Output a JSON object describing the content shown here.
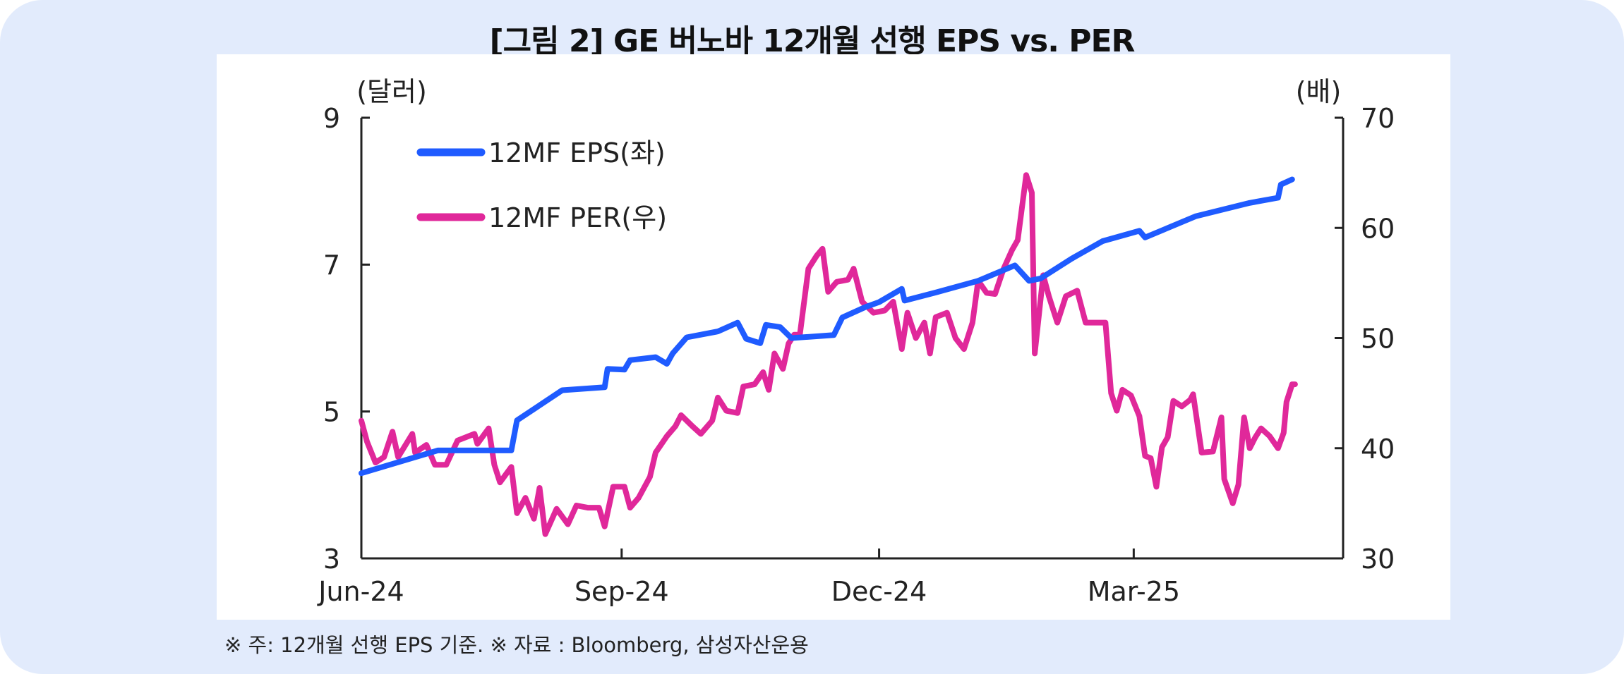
{
  "title": "[그림 2] GE 버노바 12개월 선행 EPS vs. PER",
  "footnote": "※ 주: 12개월 선행 EPS 기준. ※ 자료 : Bloomberg, 삼성자산운용",
  "chart_data": {
    "type": "line",
    "title": "[그림 2] GE 버노바 12개월 선행 EPS vs. PER",
    "x_unit": "days since 2024-06-01",
    "xlim": [
      0,
      347
    ],
    "x_ticks": [
      {
        "day": 0,
        "label": "Jun-24"
      },
      {
        "day": 92,
        "label": "Sep-24"
      },
      {
        "day": 183,
        "label": "Dec-24"
      },
      {
        "day": 273,
        "label": "Mar-25"
      }
    ],
    "y_left": {
      "label": "(달러)",
      "lim": [
        3,
        9
      ],
      "ticks": [
        "3",
        "5",
        "7",
        "9"
      ]
    },
    "y_right": {
      "label": "(배)",
      "lim": [
        30,
        70
      ],
      "ticks": [
        "30",
        "40",
        "50",
        "60",
        "70"
      ]
    },
    "legend_position": "top-left",
    "series": [
      {
        "name": "12MF EPS(좌)",
        "axis": "left",
        "color": "#1f5bff",
        "points": [
          [
            0,
            4.16
          ],
          [
            27,
            4.47
          ],
          [
            53,
            4.47
          ],
          [
            55,
            4.88
          ],
          [
            71,
            5.29
          ],
          [
            86,
            5.33
          ],
          [
            87,
            5.58
          ],
          [
            93,
            5.57
          ],
          [
            95,
            5.7
          ],
          [
            104,
            5.74
          ],
          [
            108,
            5.65
          ],
          [
            110,
            5.79
          ],
          [
            115,
            6.01
          ],
          [
            126,
            6.09
          ],
          [
            133,
            6.21
          ],
          [
            136,
            5.99
          ],
          [
            141,
            5.93
          ],
          [
            143,
            6.18
          ],
          [
            148,
            6.15
          ],
          [
            152,
            6.0
          ],
          [
            167,
            6.04
          ],
          [
            170,
            6.28
          ],
          [
            178,
            6.42
          ],
          [
            183,
            6.49
          ],
          [
            191,
            6.67
          ],
          [
            192,
            6.51
          ],
          [
            203,
            6.62
          ],
          [
            218,
            6.78
          ],
          [
            231,
            6.99
          ],
          [
            236,
            6.78
          ],
          [
            240,
            6.81
          ],
          [
            251,
            7.08
          ],
          [
            262,
            7.32
          ],
          [
            275,
            7.46
          ],
          [
            277,
            7.37
          ],
          [
            295,
            7.66
          ],
          [
            314,
            7.84
          ],
          [
            324,
            7.91
          ],
          [
            325,
            8.09
          ],
          [
            329,
            8.16
          ]
        ]
      },
      {
        "name": "12MF PER(우)",
        "axis": "right",
        "color": "#e0289a",
        "points": [
          [
            0,
            42.5
          ],
          [
            2,
            40.6
          ],
          [
            5,
            38.7
          ],
          [
            8,
            39.2
          ],
          [
            11,
            41.5
          ],
          [
            13,
            39.2
          ],
          [
            18,
            41.3
          ],
          [
            19,
            39.6
          ],
          [
            23,
            40.3
          ],
          [
            26,
            38.5
          ],
          [
            30,
            38.5
          ],
          [
            34,
            40.7
          ],
          [
            40,
            41.3
          ],
          [
            41,
            40.4
          ],
          [
            45,
            41.8
          ],
          [
            47,
            38.5
          ],
          [
            49,
            36.9
          ],
          [
            53,
            38.3
          ],
          [
            55,
            34.1
          ],
          [
            58,
            35.5
          ],
          [
            61,
            33.6
          ],
          [
            63,
            36.4
          ],
          [
            65,
            32.2
          ],
          [
            69,
            34.5
          ],
          [
            73,
            33.1
          ],
          [
            76,
            34.8
          ],
          [
            80,
            34.6
          ],
          [
            84,
            34.6
          ],
          [
            86,
            32.9
          ],
          [
            89,
            36.5
          ],
          [
            93,
            36.5
          ],
          [
            95,
            34.6
          ],
          [
            98,
            35.5
          ],
          [
            102,
            37.4
          ],
          [
            104,
            39.6
          ],
          [
            108,
            41.1
          ],
          [
            111,
            42.0
          ],
          [
            113,
            43.0
          ],
          [
            117,
            42.0
          ],
          [
            120,
            41.3
          ],
          [
            124,
            42.5
          ],
          [
            126,
            44.6
          ],
          [
            129,
            43.4
          ],
          [
            133,
            43.2
          ],
          [
            135,
            45.6
          ],
          [
            139,
            45.8
          ],
          [
            142,
            46.9
          ],
          [
            144,
            45.3
          ],
          [
            146,
            48.6
          ],
          [
            149,
            47.2
          ],
          [
            151,
            49.5
          ],
          [
            153,
            50.3
          ],
          [
            155,
            50.3
          ],
          [
            158,
            56.3
          ],
          [
            161,
            57.5
          ],
          [
            163,
            58.1
          ],
          [
            165,
            54.2
          ],
          [
            168,
            55.1
          ],
          [
            172,
            55.3
          ],
          [
            174,
            56.3
          ],
          [
            177,
            53.3
          ],
          [
            181,
            52.3
          ],
          [
            185,
            52.5
          ],
          [
            188,
            53.3
          ],
          [
            191,
            49.0
          ],
          [
            193,
            52.3
          ],
          [
            196,
            50.0
          ],
          [
            199,
            51.4
          ],
          [
            201,
            48.6
          ],
          [
            203,
            51.9
          ],
          [
            207,
            52.3
          ],
          [
            210,
            50.0
          ],
          [
            213,
            49.0
          ],
          [
            216,
            51.4
          ],
          [
            218,
            55.2
          ],
          [
            221,
            54.1
          ],
          [
            224,
            54.0
          ],
          [
            227,
            56.3
          ],
          [
            230,
            58.0
          ],
          [
            232,
            58.9
          ],
          [
            235,
            64.8
          ],
          [
            237,
            63.2
          ],
          [
            238,
            48.6
          ],
          [
            241,
            55.7
          ],
          [
            243,
            53.8
          ],
          [
            246,
            51.4
          ],
          [
            249,
            53.8
          ],
          [
            253,
            54.3
          ],
          [
            256,
            51.4
          ],
          [
            260,
            51.4
          ],
          [
            263,
            51.4
          ],
          [
            265,
            45.0
          ],
          [
            267,
            43.4
          ],
          [
            269,
            45.3
          ],
          [
            272,
            44.8
          ],
          [
            275,
            42.9
          ],
          [
            277,
            39.3
          ],
          [
            279,
            39.1
          ],
          [
            281,
            36.5
          ],
          [
            283,
            40.1
          ],
          [
            285,
            41.0
          ],
          [
            287,
            44.3
          ],
          [
            290,
            43.8
          ],
          [
            293,
            44.4
          ],
          [
            294,
            44.9
          ],
          [
            297,
            39.6
          ],
          [
            301,
            39.7
          ],
          [
            304,
            42.8
          ],
          [
            305,
            37.2
          ],
          [
            308,
            35.0
          ],
          [
            310,
            36.7
          ],
          [
            312,
            42.8
          ],
          [
            314,
            40.0
          ],
          [
            316,
            41.0
          ],
          [
            318,
            41.8
          ],
          [
            321,
            41.1
          ],
          [
            324,
            40.0
          ],
          [
            326,
            41.4
          ],
          [
            327,
            44.2
          ],
          [
            329,
            45.8
          ],
          [
            330,
            45.8
          ]
        ]
      }
    ]
  }
}
